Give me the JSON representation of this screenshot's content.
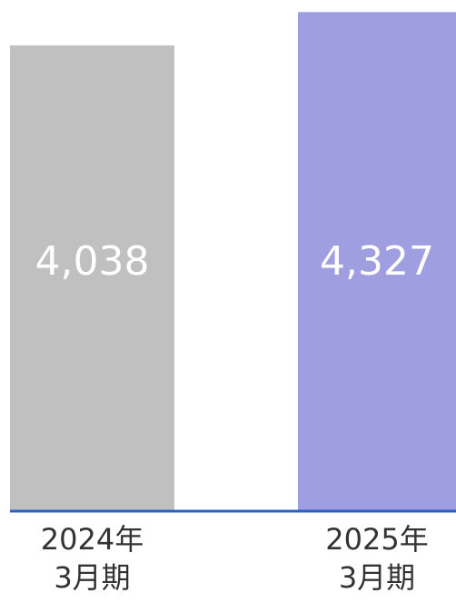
{
  "chart_data": {
    "type": "bar",
    "categories": [
      "2024年\n3月期",
      "2025年\n3月期"
    ],
    "values": [
      4038,
      4327
    ],
    "value_labels": [
      "4,038",
      "4,327"
    ],
    "colors": [
      "#c0c0c0",
      "#9e9ee0"
    ],
    "ylim": [
      0,
      4400
    ]
  }
}
